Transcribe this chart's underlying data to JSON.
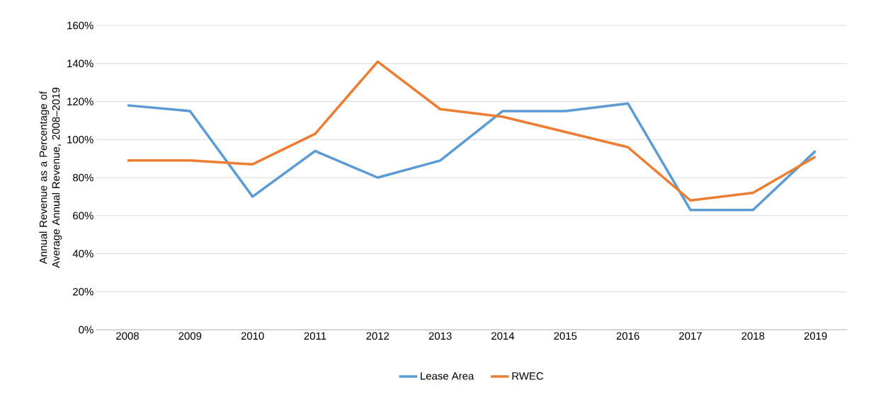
{
  "chart_data": {
    "type": "line",
    "ylabel": "Annual Revenue as a Percentage of Average Annual Revenue, 2008–2019",
    "categories": [
      "2008",
      "2009",
      "2010",
      "2011",
      "2012",
      "2013",
      "2014",
      "2015",
      "2016",
      "2017",
      "2018",
      "2019"
    ],
    "series": [
      {
        "name": "Lease Area",
        "color": "#5b9bd5",
        "values": [
          118,
          115,
          70,
          94,
          80,
          89,
          115,
          115,
          119,
          63,
          63,
          94
        ]
      },
      {
        "name": "RWEC",
        "color": "#ed7d31",
        "values": [
          89,
          89,
          87,
          103,
          141,
          116,
          112,
          104,
          96,
          68,
          72,
          91
        ]
      }
    ],
    "ylim": [
      0,
      160
    ],
    "yticks": [
      {
        "value": 0,
        "label": "0%"
      },
      {
        "value": 20,
        "label": "20%"
      },
      {
        "value": 40,
        "label": "40%"
      },
      {
        "value": 60,
        "label": "60%"
      },
      {
        "value": 80,
        "label": "80%"
      },
      {
        "value": 100,
        "label": "100%"
      },
      {
        "value": 120,
        "label": "120%"
      },
      {
        "value": 140,
        "label": "140%"
      },
      {
        "value": 160,
        "label": "160%"
      }
    ],
    "grid": "y",
    "legend": "bottom",
    "marker": "none",
    "line_style": "solid"
  }
}
